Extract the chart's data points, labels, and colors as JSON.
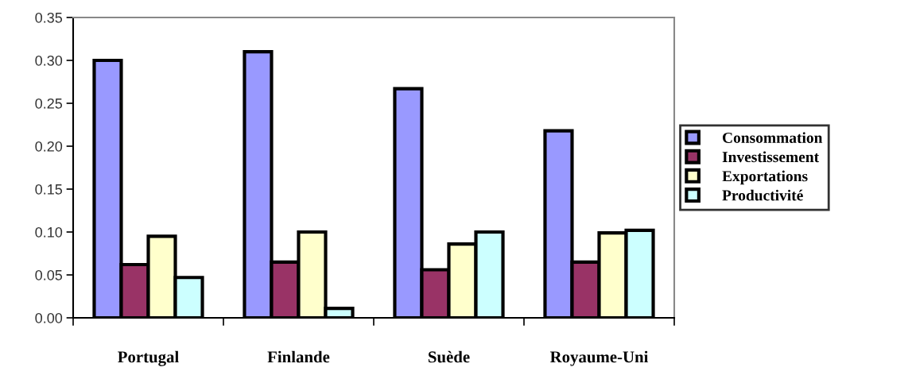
{
  "chart_data": {
    "type": "bar",
    "categories": [
      "Portugal",
      "Finlande",
      "Suède",
      "Royaume-Uni"
    ],
    "series": [
      {
        "name": "Consommation",
        "color": "#9999ff",
        "values": [
          0.3,
          0.31,
          0.267,
          0.218
        ]
      },
      {
        "name": "Investissement",
        "color": "#993366",
        "values": [
          0.062,
          0.065,
          0.056,
          0.065
        ]
      },
      {
        "name": "Exportations",
        "color": "#ffffcc",
        "values": [
          0.095,
          0.1,
          0.086,
          0.099
        ]
      },
      {
        "name": "Productivité",
        "color": "#ccffff",
        "values": [
          0.047,
          0.011,
          0.1,
          0.102
        ]
      }
    ],
    "ylim": [
      0,
      0.35
    ],
    "yticks": [
      {
        "value": 0,
        "label": "0.00"
      },
      {
        "value": 0.05,
        "label": "0.05"
      },
      {
        "value": 0.1,
        "label": "0.10"
      },
      {
        "value": 0.15,
        "label": "0.15"
      },
      {
        "value": 0.2,
        "label": "0.20"
      },
      {
        "value": 0.25,
        "label": "0.25"
      },
      {
        "value": 0.3,
        "label": "0.30"
      },
      {
        "value": 0.35,
        "label": "0.35"
      }
    ],
    "grid": false,
    "legend": "right"
  }
}
